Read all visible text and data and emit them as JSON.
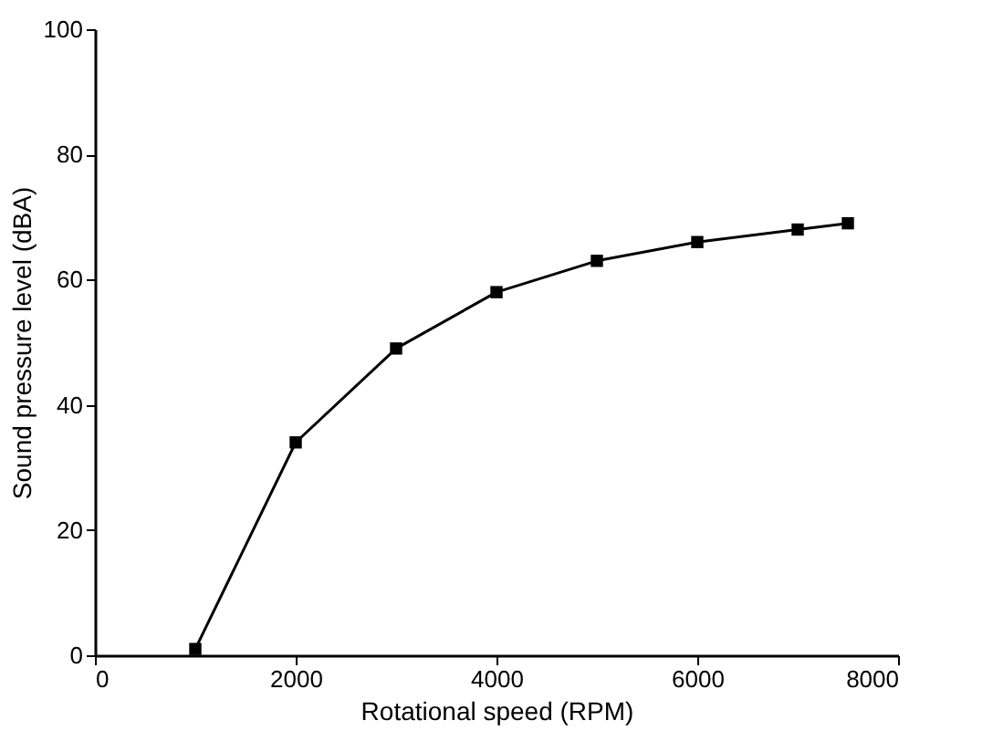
{
  "chart_data": {
    "type": "line",
    "xlabel": "Rotational speed (RPM)",
    "ylabel": "Sound pressure level (dBA)",
    "x": [
      1000,
      2000,
      3000,
      4000,
      5000,
      6000,
      7000,
      7500
    ],
    "series": [
      {
        "color": "#000000",
        "values": [
          1,
          34,
          49,
          58,
          63,
          66,
          68,
          69
        ]
      }
    ],
    "xlim": [
      0,
      8000
    ],
    "xticks": [
      0,
      2000,
      4000,
      6000,
      8000
    ],
    "ylim": [
      0,
      100
    ],
    "yticks": [
      0,
      20,
      40,
      60,
      80,
      100
    ],
    "grid": false,
    "legend": false,
    "marker": "square",
    "line_style": "solid"
  }
}
